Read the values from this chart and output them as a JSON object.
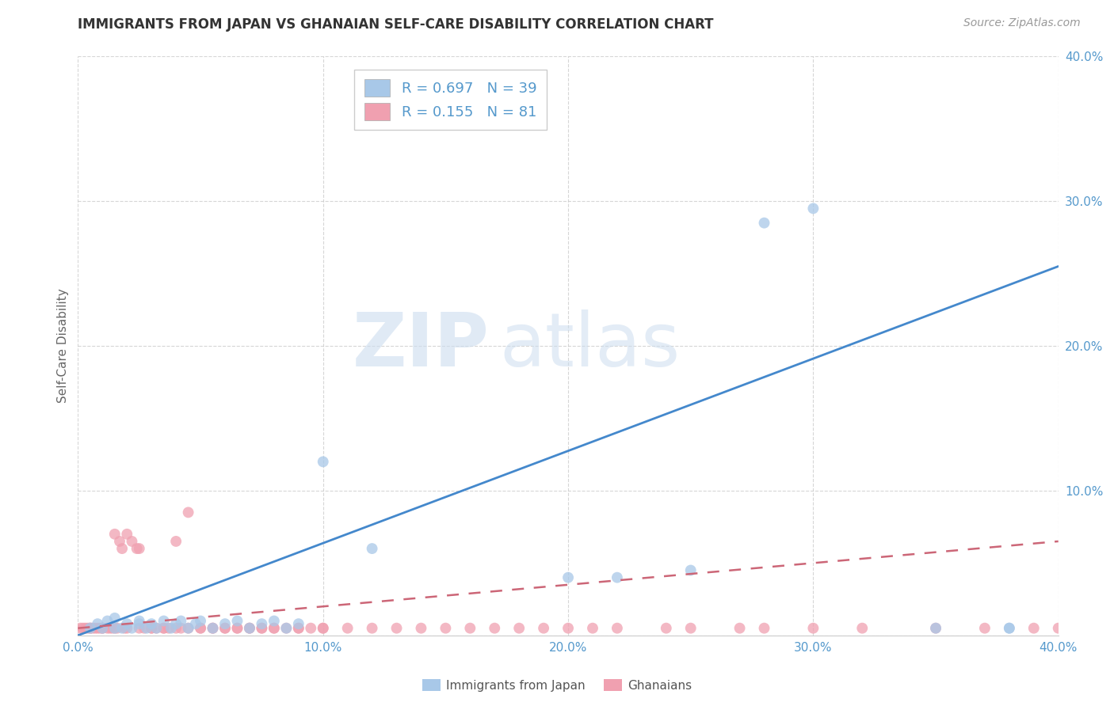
{
  "title": "IMMIGRANTS FROM JAPAN VS GHANAIAN SELF-CARE DISABILITY CORRELATION CHART",
  "source": "Source: ZipAtlas.com",
  "ylabel": "Self-Care Disability",
  "legend_label1": "Immigrants from Japan",
  "legend_label2": "Ghanaians",
  "R1": 0.697,
  "N1": 39,
  "R2": 0.155,
  "N2": 81,
  "color_blue": "#a8c8e8",
  "color_pink": "#f0a0b0",
  "color_blue_line": "#4488cc",
  "color_pink_line": "#cc6677",
  "xlim": [
    0.0,
    0.4
  ],
  "ylim": [
    0.0,
    0.4
  ],
  "xticks": [
    0.0,
    0.1,
    0.2,
    0.3,
    0.4
  ],
  "yticks": [
    0.0,
    0.1,
    0.2,
    0.3,
    0.4
  ],
  "blue_scatter_x": [
    0.005,
    0.008,
    0.01,
    0.012,
    0.015,
    0.015,
    0.018,
    0.02,
    0.022,
    0.025,
    0.025,
    0.028,
    0.03,
    0.032,
    0.035,
    0.038,
    0.04,
    0.042,
    0.045,
    0.048,
    0.05,
    0.055,
    0.06,
    0.065,
    0.07,
    0.075,
    0.08,
    0.085,
    0.09,
    0.1,
    0.12,
    0.2,
    0.22,
    0.25,
    0.28,
    0.3,
    0.35,
    0.38,
    0.38
  ],
  "blue_scatter_y": [
    0.005,
    0.008,
    0.005,
    0.01,
    0.005,
    0.012,
    0.005,
    0.008,
    0.005,
    0.01,
    0.008,
    0.005,
    0.008,
    0.005,
    0.01,
    0.005,
    0.008,
    0.01,
    0.005,
    0.008,
    0.01,
    0.005,
    0.008,
    0.01,
    0.005,
    0.008,
    0.01,
    0.005,
    0.008,
    0.12,
    0.06,
    0.04,
    0.04,
    0.045,
    0.285,
    0.295,
    0.005,
    0.005,
    0.005
  ],
  "pink_scatter_x": [
    0.001,
    0.002,
    0.003,
    0.004,
    0.005,
    0.005,
    0.006,
    0.007,
    0.008,
    0.009,
    0.01,
    0.01,
    0.012,
    0.013,
    0.014,
    0.015,
    0.015,
    0.016,
    0.017,
    0.018,
    0.019,
    0.02,
    0.02,
    0.022,
    0.024,
    0.025,
    0.025,
    0.027,
    0.03,
    0.03,
    0.032,
    0.035,
    0.035,
    0.037,
    0.04,
    0.04,
    0.042,
    0.045,
    0.045,
    0.05,
    0.05,
    0.055,
    0.055,
    0.06,
    0.06,
    0.065,
    0.065,
    0.07,
    0.07,
    0.075,
    0.075,
    0.08,
    0.08,
    0.085,
    0.09,
    0.09,
    0.095,
    0.1,
    0.1,
    0.11,
    0.12,
    0.13,
    0.14,
    0.15,
    0.16,
    0.17,
    0.18,
    0.19,
    0.2,
    0.21,
    0.22,
    0.24,
    0.25,
    0.27,
    0.28,
    0.3,
    0.32,
    0.35,
    0.37,
    0.39,
    0.4
  ],
  "pink_scatter_y": [
    0.005,
    0.005,
    0.005,
    0.005,
    0.005,
    0.005,
    0.005,
    0.005,
    0.005,
    0.005,
    0.005,
    0.005,
    0.005,
    0.005,
    0.005,
    0.005,
    0.07,
    0.005,
    0.065,
    0.06,
    0.005,
    0.005,
    0.07,
    0.065,
    0.06,
    0.005,
    0.06,
    0.005,
    0.005,
    0.005,
    0.005,
    0.005,
    0.005,
    0.005,
    0.005,
    0.065,
    0.005,
    0.005,
    0.085,
    0.005,
    0.005,
    0.005,
    0.005,
    0.005,
    0.005,
    0.005,
    0.005,
    0.005,
    0.005,
    0.005,
    0.005,
    0.005,
    0.005,
    0.005,
    0.005,
    0.005,
    0.005,
    0.005,
    0.005,
    0.005,
    0.005,
    0.005,
    0.005,
    0.005,
    0.005,
    0.005,
    0.005,
    0.005,
    0.005,
    0.005,
    0.005,
    0.005,
    0.005,
    0.005,
    0.005,
    0.005,
    0.005,
    0.005,
    0.005,
    0.005,
    0.005
  ],
  "blue_line_x": [
    0.0,
    0.4
  ],
  "blue_line_y": [
    0.0,
    0.255
  ],
  "pink_line_x": [
    0.0,
    0.4
  ],
  "pink_line_y": [
    0.005,
    0.065
  ],
  "watermark_zip": "ZIP",
  "watermark_atlas": "atlas",
  "background_color": "#ffffff",
  "grid_color": "#cccccc",
  "tick_color": "#5599cc",
  "title_color": "#333333",
  "source_color": "#999999",
  "ylabel_color": "#666666"
}
